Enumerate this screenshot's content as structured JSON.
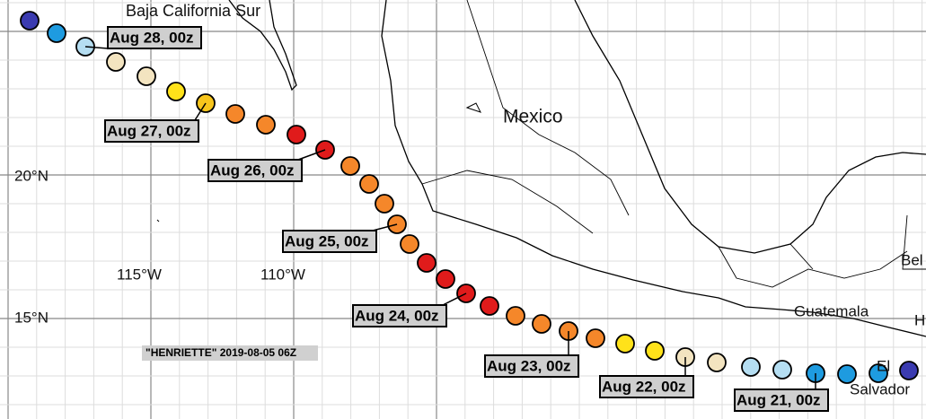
{
  "title": "\"HENRIETTE\" 2019-08-05 06Z",
  "places": [
    "Baja California Sur",
    "Mexico",
    "Guatemala",
    "Salvador",
    "Bel",
    "H",
    "El"
  ],
  "lat_labels": [
    "20°N",
    "15°N"
  ],
  "lon_labels": [
    "115°W",
    "110°W"
  ],
  "date_labels": [
    "Aug 28, 00z",
    "Aug 27, 00z",
    "Aug 26, 00z",
    "Aug 25, 00z",
    "Aug 24, 00z",
    "Aug 23, 00z",
    "Aug 22, 00z",
    "Aug 21, 00z"
  ]
}
